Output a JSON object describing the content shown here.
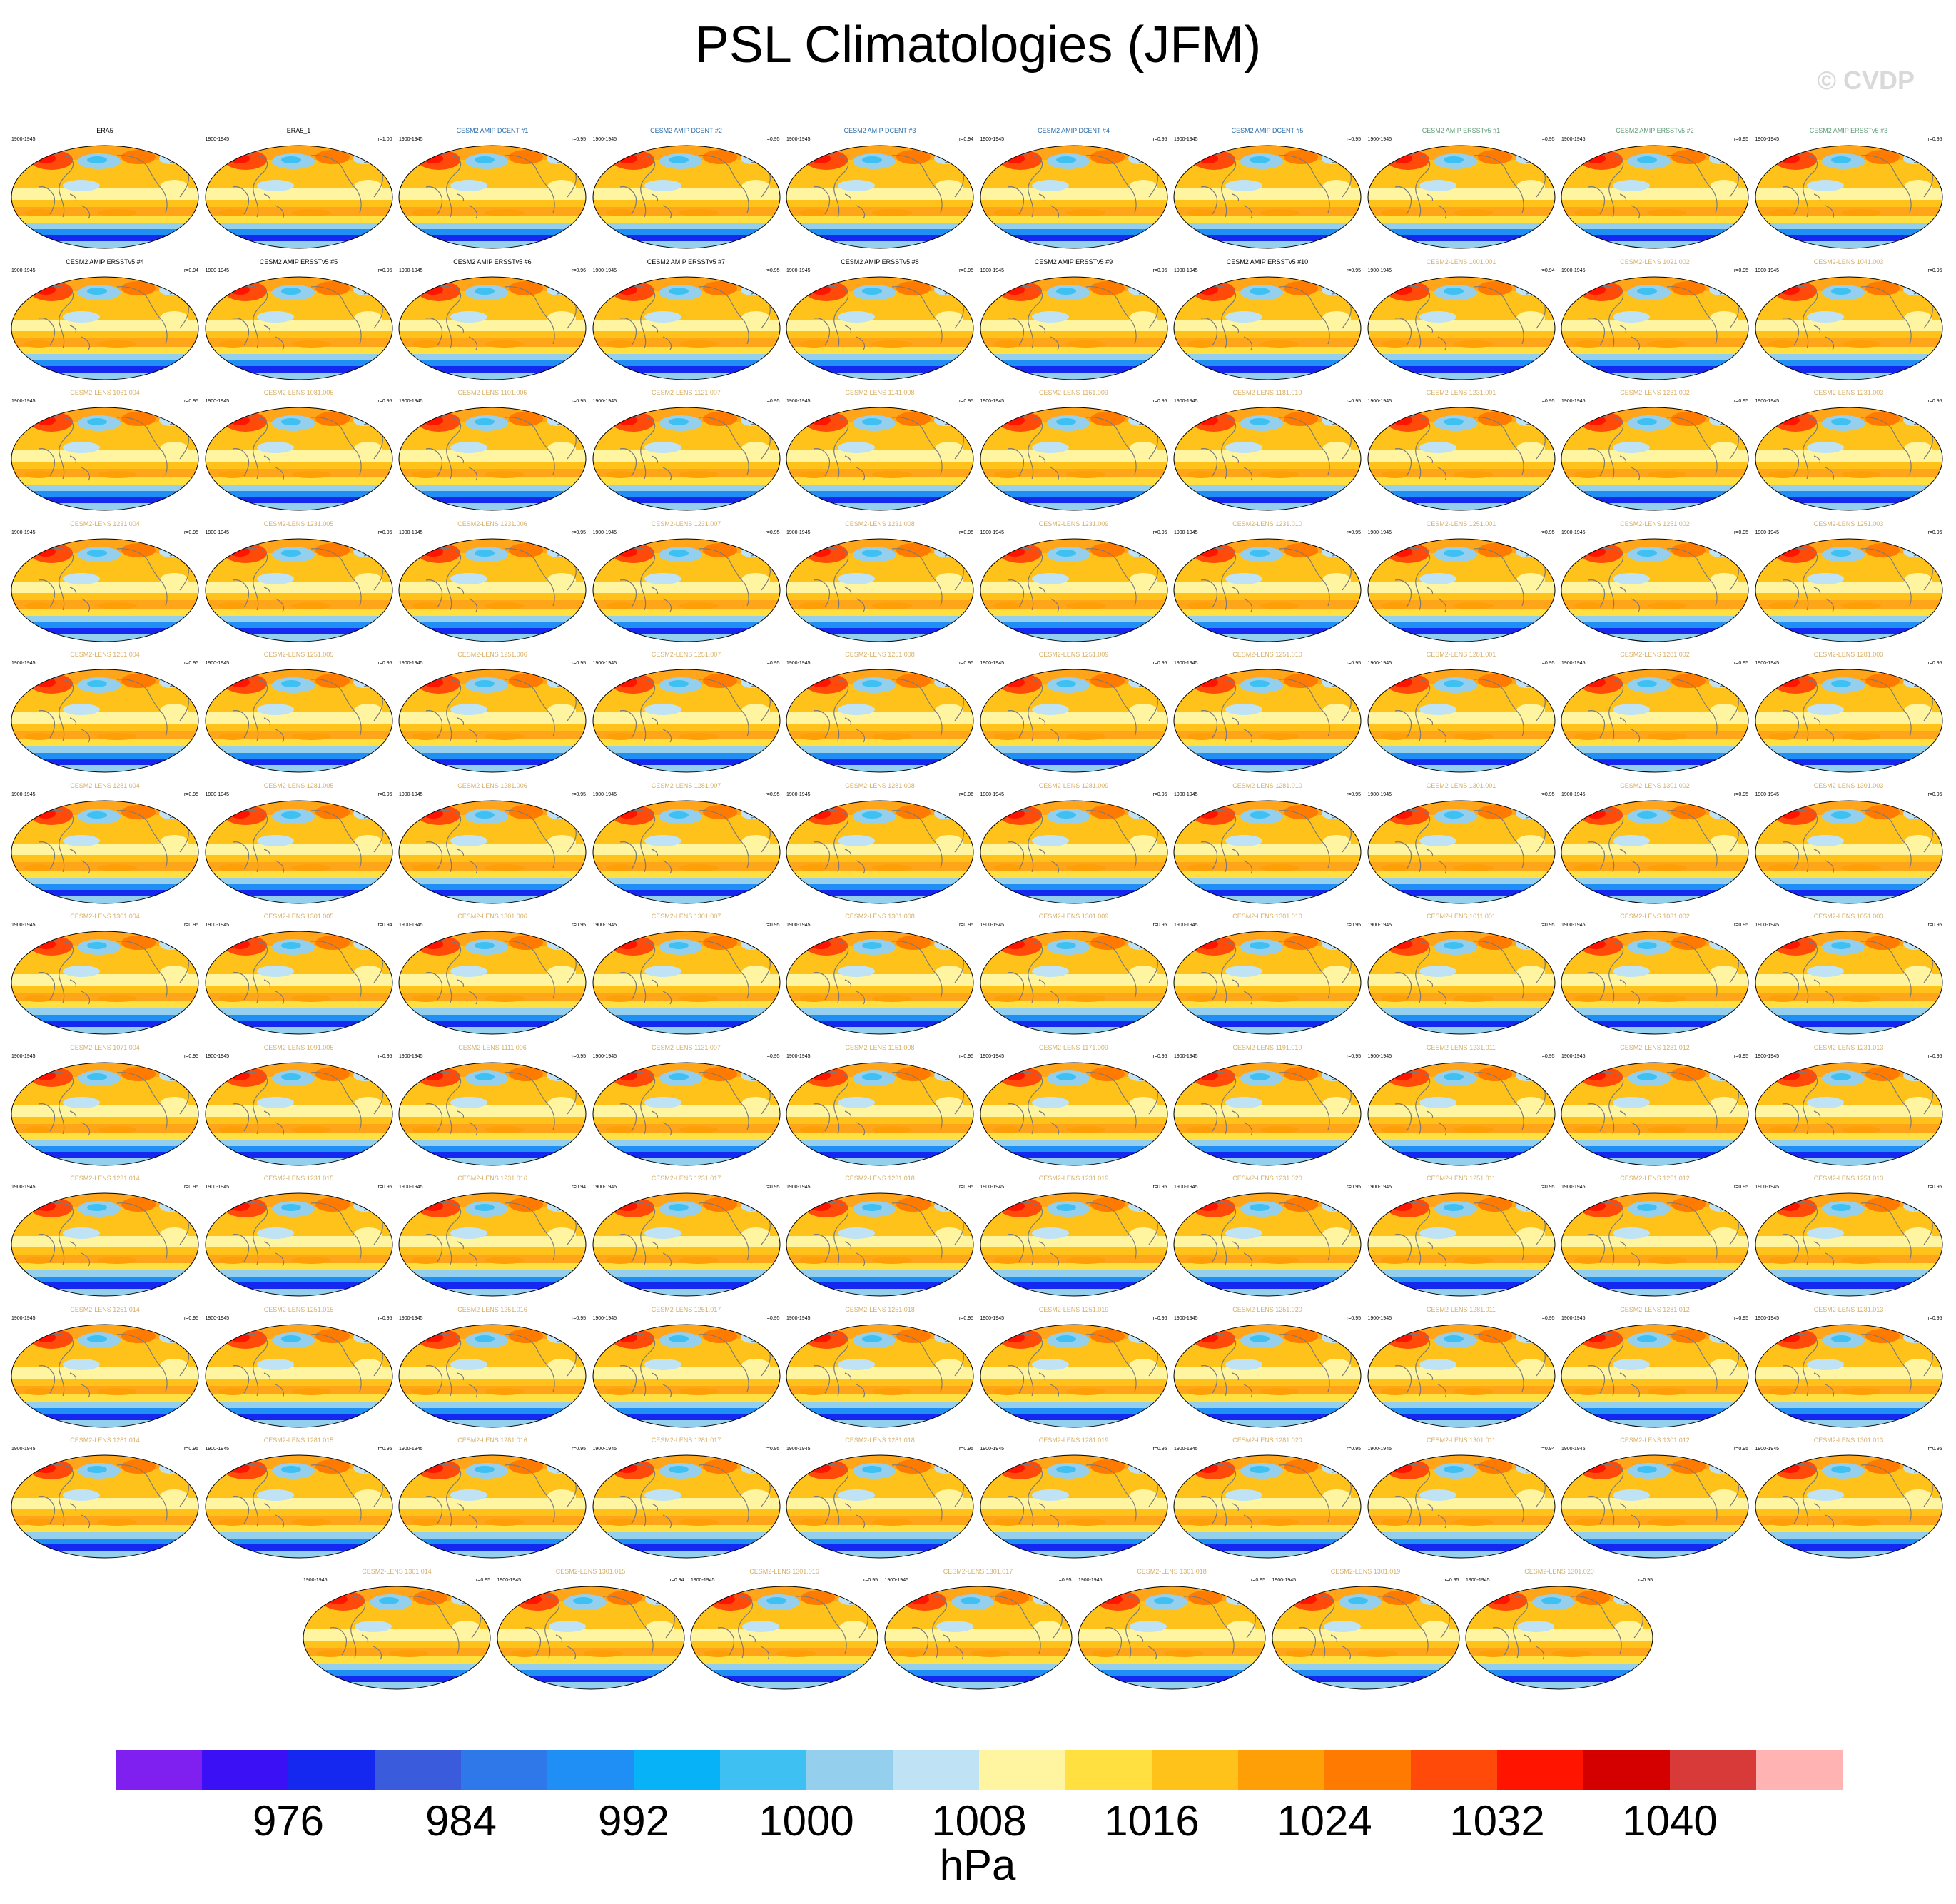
{
  "title": "PSL Climatologies (JFM)",
  "watermark": "© CVDP",
  "colors": {
    "title_black": "#000000",
    "title_dcent": "#2c6ea8",
    "title_erss": "#5f9c78",
    "title_lens": "#d8b068"
  },
  "chart_data": {
    "type": "heatmap",
    "title": "PSL Climatologies (JFM)",
    "layout": "11 rows of 10 panels plus a final row of 7 panels",
    "panel_left_label": "1900-1945",
    "panels": [
      {
        "label": "ERA5",
        "r": "",
        "group": "obs"
      },
      {
        "label": "ERA5_1",
        "r": "r=1.00",
        "group": "obs"
      },
      {
        "label": "CESM2 AMIP DCENT #1",
        "r": "r=0.95",
        "group": "dcent"
      },
      {
        "label": "CESM2 AMIP DCENT #2",
        "r": "r=0.95",
        "group": "dcent"
      },
      {
        "label": "CESM2 AMIP DCENT #3",
        "r": "r=0.94",
        "group": "dcent"
      },
      {
        "label": "CESM2 AMIP DCENT #4",
        "r": "r=0.95",
        "group": "dcent"
      },
      {
        "label": "CESM2 AMIP DCENT #5",
        "r": "r=0.95",
        "group": "dcent"
      },
      {
        "label": "CESM2 AMIP ERSSTv5 #1",
        "r": "r=0.95",
        "group": "erss"
      },
      {
        "label": "CESM2 AMIP ERSSTv5 #2",
        "r": "r=0.95",
        "group": "erss"
      },
      {
        "label": "CESM2 AMIP ERSSTv5 #3",
        "r": "r=0.95",
        "group": "erss"
      },
      {
        "label": "CESM2 AMIP ERSSTv5 #4",
        "r": "r=0.94",
        "group": "gray"
      },
      {
        "label": "CESM2 AMIP ERSSTv5 #5",
        "r": "r=0.95",
        "group": "gray"
      },
      {
        "label": "CESM2 AMIP ERSSTv5 #6",
        "r": "r=0.96",
        "group": "gray"
      },
      {
        "label": "CESM2 AMIP ERSSTv5 #7",
        "r": "r=0.95",
        "group": "gray"
      },
      {
        "label": "CESM2 AMIP ERSSTv5 #8",
        "r": "r=0.95",
        "group": "gray"
      },
      {
        "label": "CESM2 AMIP ERSSTv5 #9",
        "r": "r=0.95",
        "group": "gray"
      },
      {
        "label": "CESM2 AMIP ERSSTv5 #10",
        "r": "r=0.95",
        "group": "gray"
      },
      {
        "label": "CESM2-LENS 1001.001",
        "r": "r=0.94",
        "group": "lens"
      },
      {
        "label": "CESM2-LENS 1021.002",
        "r": "r=0.95",
        "group": "lens"
      },
      {
        "label": "CESM2-LENS 1041.003",
        "r": "r=0.95",
        "group": "lens"
      },
      {
        "label": "CESM2-LENS 1061.004",
        "r": "r=0.95",
        "group": "lens"
      },
      {
        "label": "CESM2-LENS 1081.005",
        "r": "r=0.95",
        "group": "lens"
      },
      {
        "label": "CESM2-LENS 1101.006",
        "r": "r=0.95",
        "group": "lens"
      },
      {
        "label": "CESM2-LENS 1121.007",
        "r": "r=0.95",
        "group": "lens"
      },
      {
        "label": "CESM2-LENS 1141.008",
        "r": "r=0.95",
        "group": "lens"
      },
      {
        "label": "CESM2-LENS 1161.009",
        "r": "r=0.95",
        "group": "lens"
      },
      {
        "label": "CESM2-LENS 1181.010",
        "r": "r=0.95",
        "group": "lens"
      },
      {
        "label": "CESM2-LENS 1231.001",
        "r": "r=0.95",
        "group": "lens"
      },
      {
        "label": "CESM2-LENS 1231.002",
        "r": "r=0.95",
        "group": "lens"
      },
      {
        "label": "CESM2-LENS 1231.003",
        "r": "r=0.95",
        "group": "lens"
      },
      {
        "label": "CESM2-LENS 1231.004",
        "r": "r=0.95",
        "group": "lens"
      },
      {
        "label": "CESM2-LENS 1231.005",
        "r": "r=0.95",
        "group": "lens"
      },
      {
        "label": "CESM2-LENS 1231.006",
        "r": "r=0.95",
        "group": "lens"
      },
      {
        "label": "CESM2-LENS 1231.007",
        "r": "r=0.95",
        "group": "lens"
      },
      {
        "label": "CESM2-LENS 1231.008",
        "r": "r=0.95",
        "group": "lens"
      },
      {
        "label": "CESM2-LENS 1231.009",
        "r": "r=0.95",
        "group": "lens"
      },
      {
        "label": "CESM2-LENS 1231.010",
        "r": "r=0.95",
        "group": "lens"
      },
      {
        "label": "CESM2-LENS 1251.001",
        "r": "r=0.95",
        "group": "lens"
      },
      {
        "label": "CESM2-LENS 1251.002",
        "r": "r=0.95",
        "group": "lens"
      },
      {
        "label": "CESM2-LENS 1251.003",
        "r": "r=0.96",
        "group": "lens"
      },
      {
        "label": "CESM2-LENS 1251.004",
        "r": "r=0.95",
        "group": "lens"
      },
      {
        "label": "CESM2-LENS 1251.005",
        "r": "r=0.95",
        "group": "lens"
      },
      {
        "label": "CESM2-LENS 1251.006",
        "r": "r=0.95",
        "group": "lens"
      },
      {
        "label": "CESM2-LENS 1251.007",
        "r": "r=0.95",
        "group": "lens"
      },
      {
        "label": "CESM2-LENS 1251.008",
        "r": "r=0.95",
        "group": "lens"
      },
      {
        "label": "CESM2-LENS 1251.009",
        "r": "r=0.95",
        "group": "lens"
      },
      {
        "label": "CESM2-LENS 1251.010",
        "r": "r=0.95",
        "group": "lens"
      },
      {
        "label": "CESM2-LENS 1281.001",
        "r": "r=0.95",
        "group": "lens"
      },
      {
        "label": "CESM2-LENS 1281.002",
        "r": "r=0.95",
        "group": "lens"
      },
      {
        "label": "CESM2-LENS 1281.003",
        "r": "r=0.95",
        "group": "lens"
      },
      {
        "label": "CESM2-LENS 1281.004",
        "r": "r=0.95",
        "group": "lens"
      },
      {
        "label": "CESM2-LENS 1281.005",
        "r": "r=0.96",
        "group": "lens"
      },
      {
        "label": "CESM2-LENS 1281.006",
        "r": "r=0.95",
        "group": "lens"
      },
      {
        "label": "CESM2-LENS 1281.007",
        "r": "r=0.95",
        "group": "lens"
      },
      {
        "label": "CESM2-LENS 1281.008",
        "r": "r=0.96",
        "group": "lens"
      },
      {
        "label": "CESM2-LENS 1281.009",
        "r": "r=0.95",
        "group": "lens"
      },
      {
        "label": "CESM2-LENS 1281.010",
        "r": "r=0.95",
        "group": "lens"
      },
      {
        "label": "CESM2-LENS 1301.001",
        "r": "r=0.95",
        "group": "lens"
      },
      {
        "label": "CESM2-LENS 1301.002",
        "r": "r=0.95",
        "group": "lens"
      },
      {
        "label": "CESM2-LENS 1301.003",
        "r": "r=0.95",
        "group": "lens"
      },
      {
        "label": "CESM2-LENS 1301.004",
        "r": "r=0.95",
        "group": "lens"
      },
      {
        "label": "CESM2-LENS 1301.005",
        "r": "r=0.94",
        "group": "lens"
      },
      {
        "label": "CESM2-LENS 1301.006",
        "r": "r=0.95",
        "group": "lens"
      },
      {
        "label": "CESM2-LENS 1301.007",
        "r": "r=0.95",
        "group": "lens"
      },
      {
        "label": "CESM2-LENS 1301.008",
        "r": "r=0.95",
        "group": "lens"
      },
      {
        "label": "CESM2-LENS 1301.009",
        "r": "r=0.95",
        "group": "lens"
      },
      {
        "label": "CESM2-LENS 1301.010",
        "r": "r=0.95",
        "group": "lens"
      },
      {
        "label": "CESM2-LENS 1011.001",
        "r": "r=0.95",
        "group": "lens"
      },
      {
        "label": "CESM2-LENS 1031.002",
        "r": "r=0.95",
        "group": "lens"
      },
      {
        "label": "CESM2-LENS 1051.003",
        "r": "r=0.95",
        "group": "lens"
      },
      {
        "label": "CESM2-LENS 1071.004",
        "r": "r=0.95",
        "group": "lens"
      },
      {
        "label": "CESM2-LENS 1091.005",
        "r": "r=0.95",
        "group": "lens"
      },
      {
        "label": "CESM2-LENS 1111.006",
        "r": "r=0.95",
        "group": "lens"
      },
      {
        "label": "CESM2-LENS 1131.007",
        "r": "r=0.95",
        "group": "lens"
      },
      {
        "label": "CESM2-LENS 1151.008",
        "r": "r=0.95",
        "group": "lens"
      },
      {
        "label": "CESM2-LENS 1171.009",
        "r": "r=0.95",
        "group": "lens"
      },
      {
        "label": "CESM2-LENS 1191.010",
        "r": "r=0.95",
        "group": "lens"
      },
      {
        "label": "CESM2-LENS 1231.011",
        "r": "r=0.95",
        "group": "lens"
      },
      {
        "label": "CESM2-LENS 1231.012",
        "r": "r=0.95",
        "group": "lens"
      },
      {
        "label": "CESM2-LENS 1231.013",
        "r": "r=0.95",
        "group": "lens"
      },
      {
        "label": "CESM2-LENS 1231.014",
        "r": "r=0.95",
        "group": "lens"
      },
      {
        "label": "CESM2-LENS 1231.015",
        "r": "r=0.95",
        "group": "lens"
      },
      {
        "label": "CESM2-LENS 1231.016",
        "r": "r=0.94",
        "group": "lens"
      },
      {
        "label": "CESM2-LENS 1231.017",
        "r": "r=0.95",
        "group": "lens"
      },
      {
        "label": "CESM2-LENS 1231.018",
        "r": "r=0.95",
        "group": "lens"
      },
      {
        "label": "CESM2-LENS 1231.019",
        "r": "r=0.95",
        "group": "lens"
      },
      {
        "label": "CESM2-LENS 1231.020",
        "r": "r=0.95",
        "group": "lens"
      },
      {
        "label": "CESM2-LENS 1251.011",
        "r": "r=0.95",
        "group": "lens"
      },
      {
        "label": "CESM2-LENS 1251.012",
        "r": "r=0.95",
        "group": "lens"
      },
      {
        "label": "CESM2-LENS 1251.013",
        "r": "r=0.95",
        "group": "lens"
      },
      {
        "label": "CESM2-LENS 1251.014",
        "r": "r=0.95",
        "group": "lens"
      },
      {
        "label": "CESM2-LENS 1251.015",
        "r": "r=0.95",
        "group": "lens"
      },
      {
        "label": "CESM2-LENS 1251.016",
        "r": "r=0.95",
        "group": "lens"
      },
      {
        "label": "CESM2-LENS 1251.017",
        "r": "r=0.95",
        "group": "lens"
      },
      {
        "label": "CESM2-LENS 1251.018",
        "r": "r=0.95",
        "group": "lens"
      },
      {
        "label": "CESM2-LENS 1251.019",
        "r": "r=0.96",
        "group": "lens"
      },
      {
        "label": "CESM2-LENS 1251.020",
        "r": "r=0.95",
        "group": "lens"
      },
      {
        "label": "CESM2-LENS 1281.011",
        "r": "r=0.95",
        "group": "lens"
      },
      {
        "label": "CESM2-LENS 1281.012",
        "r": "r=0.95",
        "group": "lens"
      },
      {
        "label": "CESM2-LENS 1281.013",
        "r": "r=0.95",
        "group": "lens"
      },
      {
        "label": "CESM2-LENS 1281.014",
        "r": "r=0.95",
        "group": "lens"
      },
      {
        "label": "CESM2-LENS 1281.015",
        "r": "r=0.95",
        "group": "lens"
      },
      {
        "label": "CESM2-LENS 1281.016",
        "r": "r=0.95",
        "group": "lens"
      },
      {
        "label": "CESM2-LENS 1281.017",
        "r": "r=0.95",
        "group": "lens"
      },
      {
        "label": "CESM2-LENS 1281.018",
        "r": "r=0.95",
        "group": "lens"
      },
      {
        "label": "CESM2-LENS 1281.019",
        "r": "r=0.95",
        "group": "lens"
      },
      {
        "label": "CESM2-LENS 1281.020",
        "r": "r=0.95",
        "group": "lens"
      },
      {
        "label": "CESM2-LENS 1301.011",
        "r": "r=0.94",
        "group": "lens"
      },
      {
        "label": "CESM2-LENS 1301.012",
        "r": "r=0.95",
        "group": "lens"
      },
      {
        "label": "CESM2-LENS 1301.013",
        "r": "r=0.95",
        "group": "lens"
      },
      {
        "label": "CESM2-LENS 1301.014",
        "r": "r=0.95",
        "group": "lens"
      },
      {
        "label": "CESM2-LENS 1301.015",
        "r": "r=0.94",
        "group": "lens"
      },
      {
        "label": "CESM2-LENS 1301.016",
        "r": "r=0.95",
        "group": "lens"
      },
      {
        "label": "CESM2-LENS 1301.017",
        "r": "r=0.95",
        "group": "lens"
      },
      {
        "label": "CESM2-LENS 1301.018",
        "r": "r=0.95",
        "group": "lens"
      },
      {
        "label": "CESM2-LENS 1301.019",
        "r": "r=0.95",
        "group": "lens"
      },
      {
        "label": "CESM2-LENS 1301.020",
        "r": "r=0.95",
        "group": "lens"
      }
    ],
    "colorbar": {
      "unit": "hPa",
      "min": 968,
      "max": 1048,
      "interval": 4,
      "tick_labels": [
        "976",
        "984",
        "992",
        "1000",
        "1008",
        "1016",
        "1024",
        "1032",
        "1040"
      ],
      "tick_values": [
        976,
        984,
        992,
        1000,
        1008,
        1016,
        1024,
        1032,
        1040
      ],
      "colors": [
        "#7f1ff0",
        "#3b10f5",
        "#1428f0",
        "#3a5bdc",
        "#2f78ea",
        "#1f8ef5",
        "#08b2f7",
        "#3ec0f2",
        "#94d0ee",
        "#bfe3f5",
        "#fff5a0",
        "#ffe040",
        "#ffc21a",
        "#ff9f08",
        "#ff7a00",
        "#ff4a0a",
        "#ff1400",
        "#d40000",
        "#d83a3a",
        "#ffb3b3"
      ]
    }
  }
}
